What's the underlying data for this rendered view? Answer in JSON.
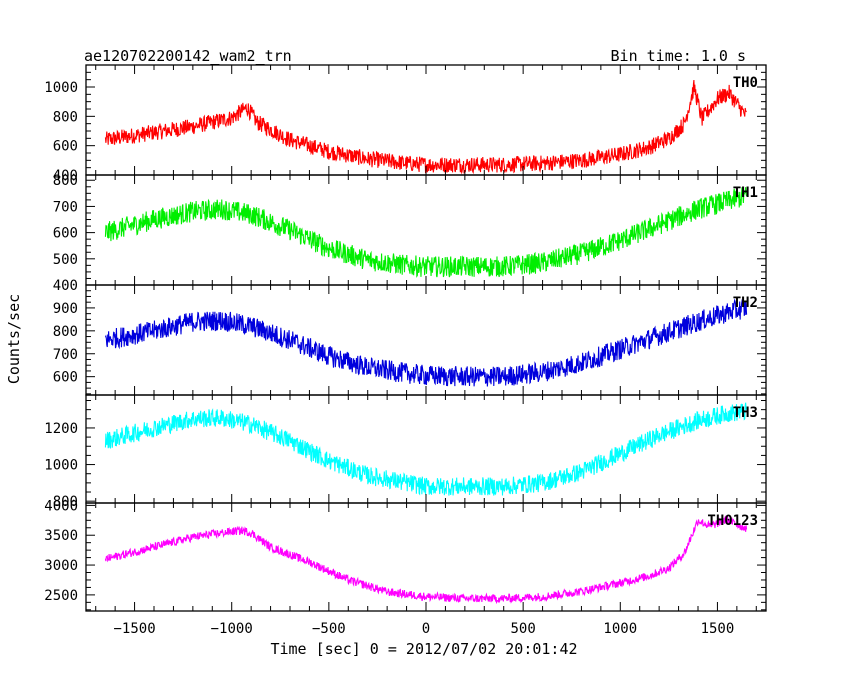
{
  "header": {
    "title": "ae120702200142_wam2_trn",
    "bin_time": "Bin time: 1.0 s"
  },
  "chart_data": {
    "type": "line",
    "shared_x": {
      "label": "Time [sec] 0 = 2012/07/02 20:01:42",
      "range": [
        -1750,
        1750
      ],
      "ticks": [
        -1500,
        -1000,
        -500,
        0,
        500,
        1000,
        1500
      ],
      "data_range": [
        -1650,
        1650
      ]
    },
    "ylabel": "Counts/sec",
    "panels": [
      {
        "name": "TH0",
        "color": "#ff0000",
        "ylim": [
          400,
          1150
        ],
        "yticks": [
          400,
          600,
          800,
          1000
        ],
        "curve": [
          [
            -1650,
            640
          ],
          [
            -1400,
            690
          ],
          [
            -1200,
            730
          ],
          [
            -1000,
            790
          ],
          [
            -920,
            860
          ],
          [
            -870,
            760
          ],
          [
            -700,
            640
          ],
          [
            -500,
            560
          ],
          [
            -300,
            510
          ],
          [
            -100,
            480
          ],
          [
            0,
            470
          ],
          [
            200,
            470
          ],
          [
            400,
            470
          ],
          [
            600,
            480
          ],
          [
            800,
            500
          ],
          [
            1000,
            540
          ],
          [
            1150,
            590
          ],
          [
            1250,
            650
          ],
          [
            1330,
            750
          ],
          [
            1380,
            1000
          ],
          [
            1420,
            780
          ],
          [
            1500,
            920
          ],
          [
            1560,
            960
          ],
          [
            1620,
            850
          ],
          [
            1650,
            800
          ]
        ],
        "noise": 55
      },
      {
        "name": "TH1",
        "color": "#00ee00",
        "ylim": [
          400,
          820
        ],
        "yticks": [
          400,
          500,
          600,
          700,
          800
        ],
        "curve": [
          [
            -1650,
            600
          ],
          [
            -1400,
            650
          ],
          [
            -1200,
            680
          ],
          [
            -1050,
            690
          ],
          [
            -900,
            670
          ],
          [
            -700,
            610
          ],
          [
            -500,
            540
          ],
          [
            -300,
            495
          ],
          [
            -100,
            475
          ],
          [
            0,
            470
          ],
          [
            200,
            470
          ],
          [
            400,
            470
          ],
          [
            600,
            485
          ],
          [
            800,
            520
          ],
          [
            1000,
            570
          ],
          [
            1200,
            630
          ],
          [
            1400,
            690
          ],
          [
            1550,
            720
          ],
          [
            1650,
            740
          ]
        ],
        "noise": 40
      },
      {
        "name": "TH2",
        "color": "#0000dd",
        "ylim": [
          520,
          1000
        ],
        "yticks": [
          600,
          700,
          800,
          900
        ],
        "curve": [
          [
            -1650,
            760
          ],
          [
            -1400,
            800
          ],
          [
            -1200,
            840
          ],
          [
            -1050,
            845
          ],
          [
            -900,
            820
          ],
          [
            -700,
            760
          ],
          [
            -500,
            690
          ],
          [
            -300,
            640
          ],
          [
            -100,
            615
          ],
          [
            0,
            605
          ],
          [
            200,
            600
          ],
          [
            400,
            600
          ],
          [
            600,
            620
          ],
          [
            800,
            660
          ],
          [
            1000,
            720
          ],
          [
            1200,
            780
          ],
          [
            1400,
            840
          ],
          [
            1550,
            880
          ],
          [
            1650,
            900
          ]
        ],
        "noise": 45
      },
      {
        "name": "TH3",
        "color": "#00ffff",
        "ylim": [
          790,
          1380
        ],
        "yticks": [
          800,
          1000,
          1200
        ],
        "curve": [
          [
            -1650,
            1130
          ],
          [
            -1400,
            1200
          ],
          [
            -1200,
            1250
          ],
          [
            -1050,
            1255
          ],
          [
            -900,
            1220
          ],
          [
            -700,
            1130
          ],
          [
            -500,
            1020
          ],
          [
            -300,
            940
          ],
          [
            -100,
            900
          ],
          [
            0,
            880
          ],
          [
            200,
            880
          ],
          [
            400,
            880
          ],
          [
            600,
            900
          ],
          [
            800,
            960
          ],
          [
            1000,
            1060
          ],
          [
            1200,
            1160
          ],
          [
            1400,
            1240
          ],
          [
            1550,
            1280
          ],
          [
            1650,
            1290
          ]
        ],
        "noise": 50
      },
      {
        "name": "TH0123",
        "color": "#ff00ff",
        "ylim": [
          2230,
          4040
        ],
        "yticks": [
          2500,
          3000,
          3500,
          4000
        ],
        "curve": [
          [
            -1650,
            3100
          ],
          [
            -1400,
            3300
          ],
          [
            -1200,
            3470
          ],
          [
            -1050,
            3540
          ],
          [
            -950,
            3580
          ],
          [
            -900,
            3540
          ],
          [
            -800,
            3300
          ],
          [
            -600,
            3050
          ],
          [
            -400,
            2750
          ],
          [
            -200,
            2550
          ],
          [
            0,
            2470
          ],
          [
            200,
            2440
          ],
          [
            400,
            2440
          ],
          [
            600,
            2470
          ],
          [
            800,
            2560
          ],
          [
            1000,
            2700
          ],
          [
            1150,
            2820
          ],
          [
            1250,
            2950
          ],
          [
            1330,
            3200
          ],
          [
            1400,
            3750
          ],
          [
            1460,
            3650
          ],
          [
            1550,
            3760
          ],
          [
            1620,
            3650
          ],
          [
            1650,
            3620
          ]
        ],
        "noise": 70
      }
    ]
  }
}
